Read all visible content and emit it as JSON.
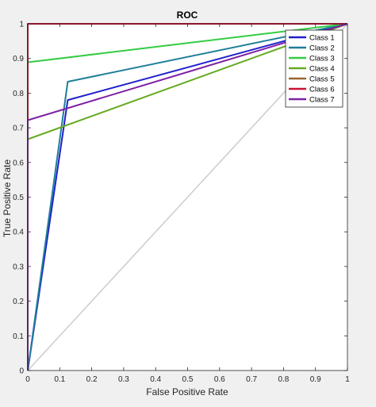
{
  "figure": {
    "background_color": "#f0f0f0",
    "axes_background_color": "#ffffff"
  },
  "chart_data": {
    "type": "line",
    "title": "ROC",
    "xlabel": "False Positive Rate",
    "ylabel": "True Positive Rate",
    "xlim": [
      0,
      1
    ],
    "ylim": [
      0,
      1
    ],
    "xticks": [
      "0",
      "0.1",
      "0.2",
      "0.3",
      "0.4",
      "0.5",
      "0.6",
      "0.7",
      "0.8",
      "0.9",
      "1"
    ],
    "yticks": [
      "0",
      "0.1",
      "0.2",
      "0.3",
      "0.4",
      "0.5",
      "0.6",
      "0.7",
      "0.8",
      "0.9",
      "1"
    ],
    "grid": false,
    "legend_position": "top-right",
    "reference_line": {
      "x": [
        0,
        1
      ],
      "y": [
        0,
        1
      ],
      "color": "#cccccc"
    },
    "series": [
      {
        "name": "Class 1",
        "color": "#1f1fcc",
        "x": [
          0,
          0.125,
          1
        ],
        "y": [
          0,
          0.78,
          1
        ]
      },
      {
        "name": "Class 2",
        "color": "#1f7f99",
        "x": [
          0,
          0.125,
          1
        ],
        "y": [
          0,
          0.833,
          1
        ]
      },
      {
        "name": "Class 3",
        "color": "#33cc44",
        "x": [
          0,
          0,
          1
        ],
        "y": [
          0,
          0.889,
          1
        ]
      },
      {
        "name": "Class 4",
        "color": "#66aa22",
        "x": [
          0,
          0,
          1
        ],
        "y": [
          0,
          0.667,
          1
        ]
      },
      {
        "name": "Class 5",
        "color": "#996633",
        "x": [
          0,
          0,
          1
        ],
        "y": [
          0,
          1,
          1
        ]
      },
      {
        "name": "Class 6",
        "color": "#cc1133",
        "x": [
          0,
          0,
          1
        ],
        "y": [
          0,
          1,
          1
        ]
      },
      {
        "name": "Class 7",
        "color": "#7f1fa5",
        "x": [
          0,
          0,
          1
        ],
        "y": [
          0,
          0.722,
          1
        ]
      }
    ]
  }
}
